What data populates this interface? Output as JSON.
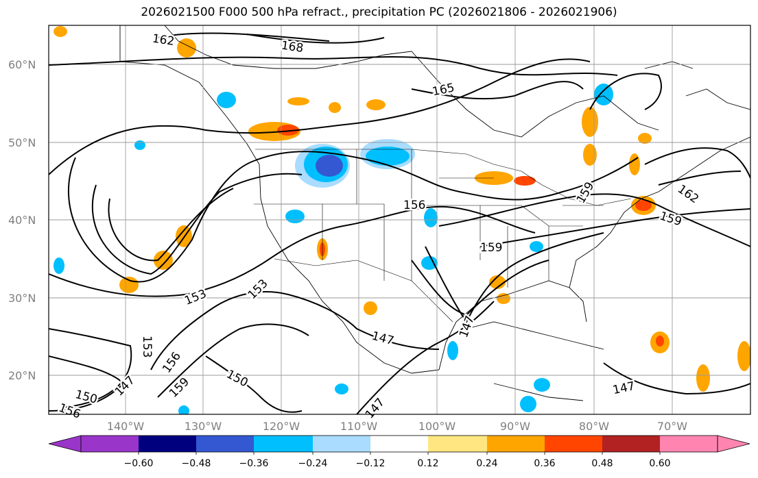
{
  "title": "2026021500 F000 500 hPa refract., precipitation PC (2026021806 - 2026021906)",
  "lat_labels": [
    "60°N",
    "50°N",
    "40°N",
    "30°N",
    "20°N"
  ],
  "lon_labels": [
    "140°W",
    "130°W",
    "120°W",
    "110°W",
    "100°W",
    "90°W",
    "80°W",
    "70°W"
  ],
  "colorbar": {
    "tick_labels": [
      "−0.60",
      "−0.48",
      "−0.36",
      "−0.24",
      "−0.12",
      "0.12",
      "0.24",
      "0.36",
      "0.48",
      "0.60"
    ],
    "colors": [
      "#9a35c9",
      "#00007f",
      "#3358d1",
      "#00bfff",
      "#a9dcff",
      "#ffffff",
      "#ffe680",
      "#ffa500",
      "#ff4500",
      "#b22222",
      "#ff85b0"
    ]
  },
  "contour_labels": [
    "162",
    "168",
    "165",
    "156",
    "159",
    "153",
    "153",
    "153",
    "147",
    "156",
    "159",
    "150",
    "147",
    "150",
    "156",
    "147",
    "159",
    "162",
    "159",
    "147",
    "147"
  ],
  "colors": {
    "axis_label": "#7f7f7f",
    "grid": "#9a9a9a",
    "contour": "#000000"
  }
}
